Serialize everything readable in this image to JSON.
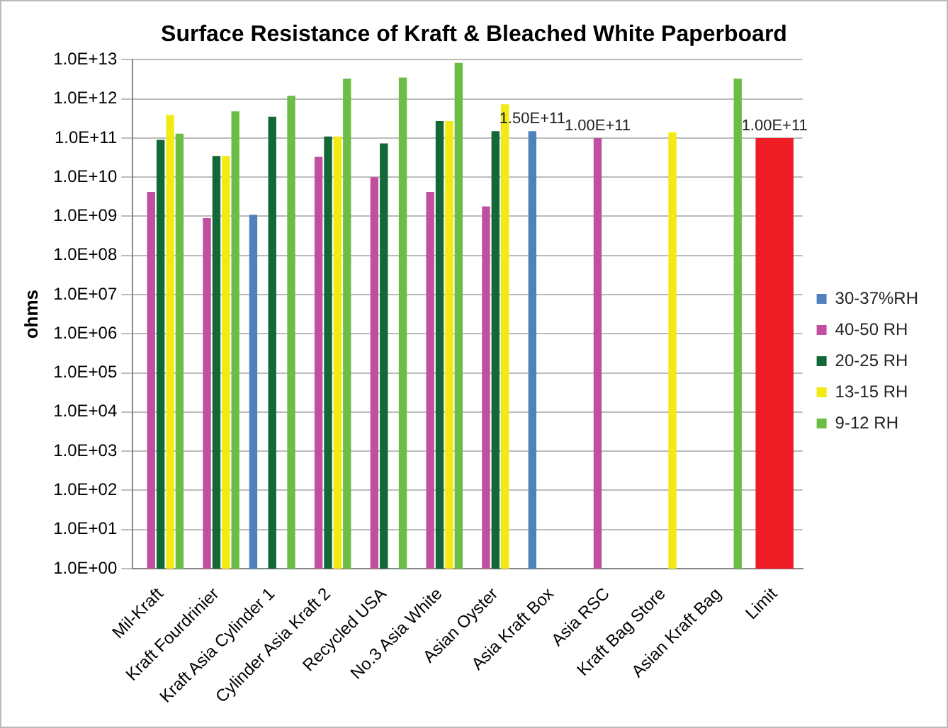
{
  "chart_data": {
    "type": "bar",
    "title": "Surface Resistance of Kraft & Bleached White Paperboard",
    "ylabel": "ohms",
    "categories": [
      "Mil-Kraft",
      "Kraft Fourdrinier",
      "Kraft Asia Cylinder 1",
      "Cylinder Asia Kraft 2",
      "Recycled USA",
      "No.3 Asia White",
      "Asian Oyster",
      "Asia Kraft Box",
      "Asia RSC",
      "Kraft Bag Store",
      "Asian Kraft Bag",
      "Limit"
    ],
    "series": [
      {
        "name": "30-37%RH",
        "color": "#4f81bd",
        "values": [
          null,
          null,
          1100000000.0,
          null,
          null,
          null,
          null,
          150000000000.0,
          null,
          null,
          null,
          null
        ],
        "value_labels": [
          null,
          null,
          null,
          null,
          null,
          null,
          null,
          "1.50E+11",
          null,
          null,
          null,
          null
        ]
      },
      {
        "name": "40-50 RH",
        "color": "#c0509f",
        "values": [
          4200000000.0,
          900000000.0,
          null,
          33000000000.0,
          10000000000.0,
          4200000000.0,
          1800000000.0,
          null,
          100000000000.0,
          null,
          null,
          null
        ],
        "value_labels": [
          null,
          null,
          null,
          null,
          null,
          null,
          null,
          null,
          "1.00E+11",
          null,
          null,
          null
        ]
      },
      {
        "name": "20-25 RH",
        "color": "#136837",
        "values": [
          90000000000.0,
          35000000000.0,
          350000000000.0,
          110000000000.0,
          73000000000.0,
          270000000000.0,
          150000000000.0,
          null,
          null,
          null,
          null,
          null
        ]
      },
      {
        "name": "13-15 RH",
        "color": "#f2ea12",
        "values": [
          390000000000.0,
          35000000000.0,
          null,
          110000000000.0,
          null,
          270000000000.0,
          730000000000.0,
          null,
          null,
          140000000000.0,
          null,
          null
        ]
      },
      {
        "name": "9-12 RH",
        "color": "#6cbd45",
        "values": [
          130000000000.0,
          480000000000.0,
          1200000000000.0,
          3300000000000.0,
          3500000000000.0,
          8300000000000.0,
          null,
          null,
          null,
          null,
          3300000000000.0,
          null
        ]
      },
      {
        "color": "#ee1c25",
        "values": [
          null,
          null,
          null,
          null,
          null,
          null,
          null,
          null,
          null,
          null,
          null,
          100000000000.0
        ],
        "value_labels": [
          null,
          null,
          null,
          null,
          null,
          null,
          null,
          null,
          null,
          null,
          null,
          "1.00E+11"
        ]
      }
    ],
    "log": "y",
    "ylim": [
      1,
      10000000000000.0
    ],
    "yticks": [
      {
        "value": 1,
        "label": "1.0E+00"
      },
      {
        "value": 10,
        "label": "1.0E+01"
      },
      {
        "value": 100,
        "label": "1.0E+02"
      },
      {
        "value": 1000,
        "label": "1.0E+03"
      },
      {
        "value": 10000.0,
        "label": "1.0E+04"
      },
      {
        "value": 100000.0,
        "label": "1.0E+05"
      },
      {
        "value": 1000000.0,
        "label": "1.0E+06"
      },
      {
        "value": 10000000.0,
        "label": "1.0E+07"
      },
      {
        "value": 100000000.0,
        "label": "1.0E+08"
      },
      {
        "value": 1000000000.0,
        "label": "1.0E+09"
      },
      {
        "value": 10000000000.0,
        "label": "1.0E+10"
      },
      {
        "value": 100000000000.0,
        "label": "1.0E+11"
      },
      {
        "value": 1000000000000.0,
        "label": "1.0E+12"
      },
      {
        "value": 10000000000000.0,
        "label": "1.0E+13"
      }
    ],
    "grid": "y",
    "legend": "right"
  }
}
